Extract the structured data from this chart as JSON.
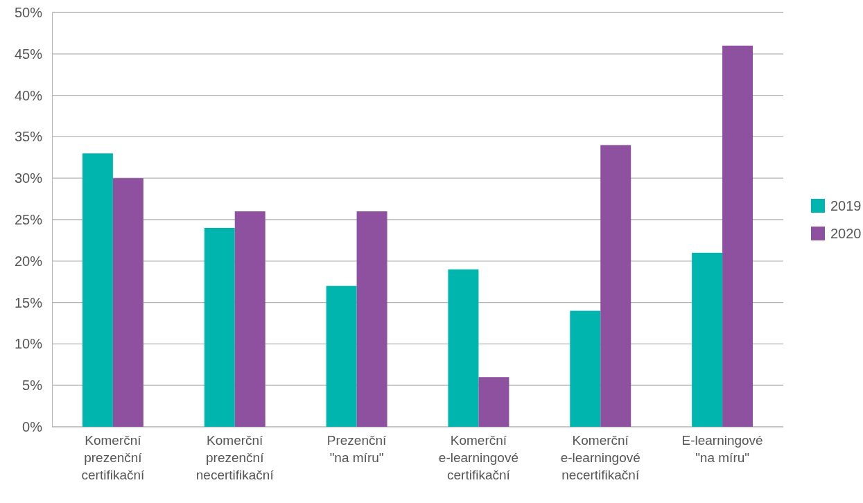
{
  "chart_data": {
    "type": "bar",
    "categories": [
      "Komerční\nprezenční\ncertifikační",
      "Komerční\nprezenční\nnecertifikační",
      "Prezenční\n\"na míru\"",
      "Komerční\ne-learningové\ncertifikační",
      "Komerční\ne-learningové\nnecertifikační",
      "E-learningové\n\"na míru\""
    ],
    "series": [
      {
        "name": "2019",
        "color": "#00b5ad",
        "values": [
          33,
          24,
          17,
          19,
          14,
          21
        ]
      },
      {
        "name": "2020",
        "color": "#8e51a0",
        "values": [
          30,
          26,
          26,
          6,
          34,
          46
        ]
      }
    ],
    "ylim": [
      0,
      50
    ],
    "yticks": [
      {
        "value": 0,
        "label": "0%"
      },
      {
        "value": 5,
        "label": "5%"
      },
      {
        "value": 10,
        "label": "10%"
      },
      {
        "value": 15,
        "label": "15%"
      },
      {
        "value": 20,
        "label": "20%"
      },
      {
        "value": 25,
        "label": "25%"
      },
      {
        "value": 30,
        "label": "30%"
      },
      {
        "value": 35,
        "label": "35%"
      },
      {
        "value": 40,
        "label": "40%"
      },
      {
        "value": 45,
        "label": "45%"
      },
      {
        "value": 50,
        "label": "50%"
      }
    ],
    "grid": "y",
    "legend": "right"
  }
}
